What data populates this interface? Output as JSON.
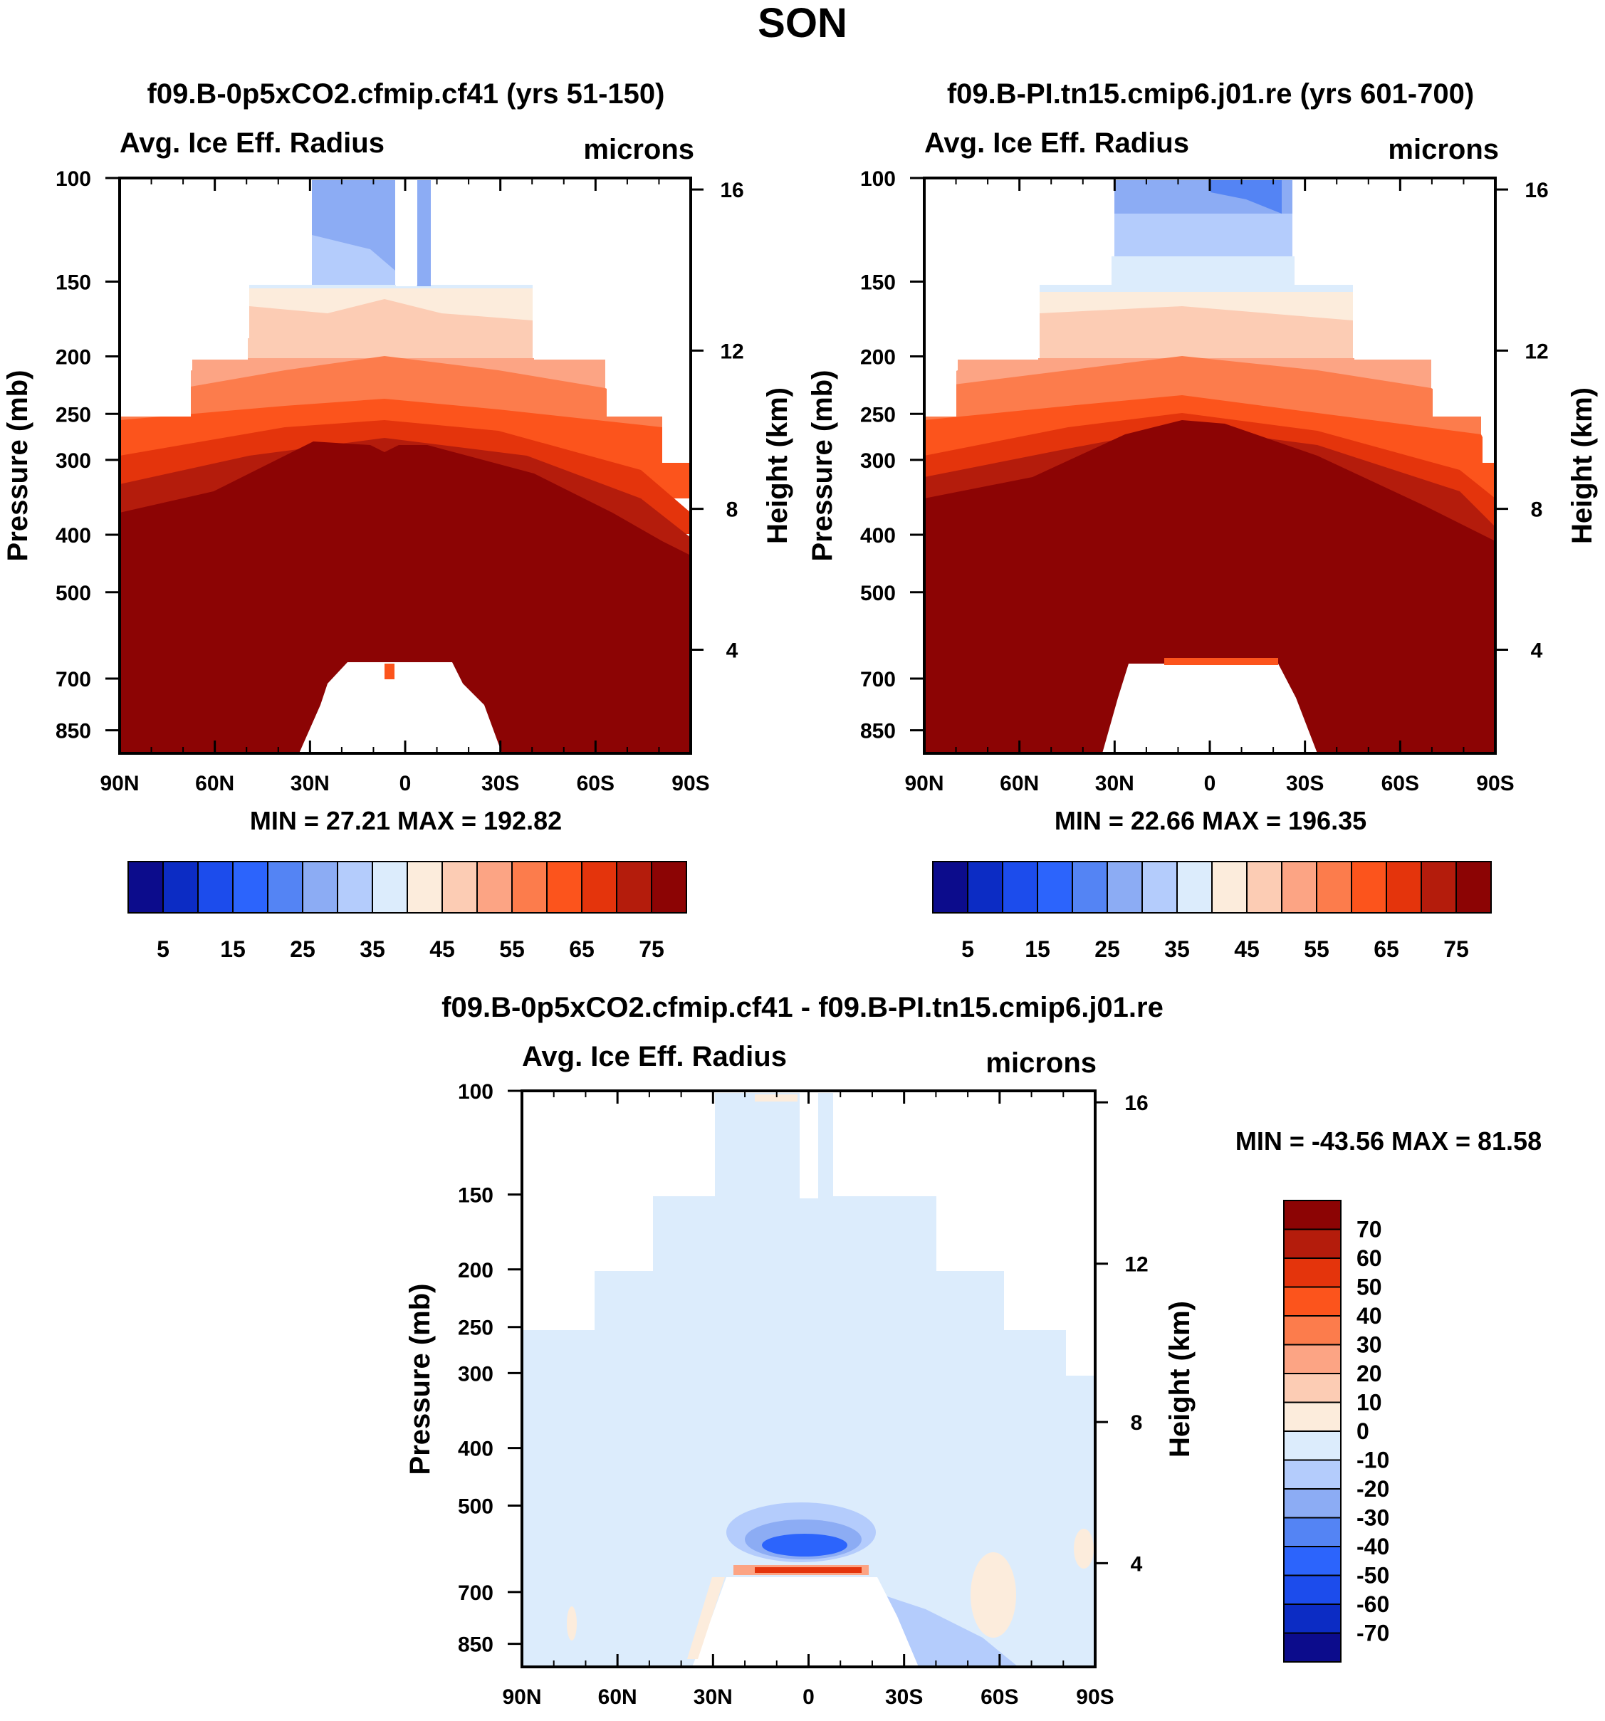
{
  "title": "SON",
  "colors": {
    "abs_scale": [
      "#0c0c8c",
      "#0c2cc4",
      "#1c4cec",
      "#2c64fc",
      "#5484f4",
      "#8cacf4",
      "#b4ccfc",
      "#dcecfc",
      "#fcecdc",
      "#fcccb4",
      "#fca484",
      "#fc7c4c",
      "#fc541c",
      "#e4340c",
      "#b41c0c",
      "#8c0404"
    ],
    "diff_scale": [
      "#0c0c8c",
      "#0c2cc4",
      "#1c4cec",
      "#2c64fc",
      "#5484f4",
      "#8cacf4",
      "#b4ccfc",
      "#dcecfc",
      "#fcecdc",
      "#fcccb4",
      "#fca484",
      "#fc7c4c",
      "#fc541c",
      "#e4340c",
      "#b41c0c",
      "#8c0404"
    ]
  },
  "chart_data": [
    {
      "type": "heatmap",
      "id": "panel1",
      "title": "f09.B-0p5xCO2.cfmip.cf41 (yrs 51-150)",
      "left_label": "Avg. Ice Eff. Radius",
      "right_label": "microns",
      "ylabel": "Pressure (mb)",
      "y2label": "Height (km)",
      "xticks": [
        "90N",
        "60N",
        "30N",
        "0",
        "30S",
        "60S",
        "90S"
      ],
      "yticks": [
        "100",
        "150",
        "200",
        "250",
        "300",
        "400",
        "500",
        "700",
        "850"
      ],
      "y2ticks": [
        "16",
        "12",
        "8",
        "4"
      ],
      "stats": "MIN =  27.21  MAX = 192.82",
      "colorbar_labels": [
        "5",
        "15",
        "25",
        "35",
        "45",
        "55",
        "65",
        "75"
      ],
      "max_value": 192.82,
      "min_value": 27.21
    },
    {
      "type": "heatmap",
      "id": "panel2",
      "title": "f09.B-PI.tn15.cmip6.j01.re (yrs 601-700)",
      "left_label": "Avg. Ice Eff. Radius",
      "right_label": "microns",
      "ylabel": "Pressure (mb)",
      "y2label": "Height (km)",
      "xticks": [
        "90N",
        "60N",
        "30N",
        "0",
        "30S",
        "60S",
        "90S"
      ],
      "yticks": [
        "100",
        "150",
        "200",
        "250",
        "300",
        "400",
        "500",
        "700",
        "850"
      ],
      "y2ticks": [
        "16",
        "12",
        "8",
        "4"
      ],
      "stats": "MIN =  22.66  MAX = 196.35",
      "colorbar_labels": [
        "5",
        "15",
        "25",
        "35",
        "45",
        "55",
        "65",
        "75"
      ],
      "max_value": 196.35,
      "min_value": 22.66
    },
    {
      "type": "heatmap",
      "id": "panel3",
      "title": "f09.B-0p5xCO2.cfmip.cf41 - f09.B-PI.tn15.cmip6.j01.re",
      "left_label": "Avg. Ice Eff. Radius",
      "right_label": "microns",
      "ylabel": "Pressure (mb)",
      "y2label": "Height (km)",
      "xticks": [
        "90N",
        "60N",
        "30N",
        "0",
        "30S",
        "60S",
        "90S"
      ],
      "yticks": [
        "100",
        "150",
        "200",
        "250",
        "300",
        "400",
        "500",
        "700",
        "850"
      ],
      "y2ticks": [
        "16",
        "12",
        "8",
        "4"
      ],
      "stats": "MIN = -43.56  MAX =  81.58",
      "colorbar_labels": [
        "70",
        "60",
        "50",
        "40",
        "30",
        "20",
        "10",
        "0",
        "-10",
        "-20",
        "-30",
        "-40",
        "-50",
        "-60",
        "-70"
      ],
      "max_value": 81.58,
      "min_value": -43.56
    }
  ]
}
